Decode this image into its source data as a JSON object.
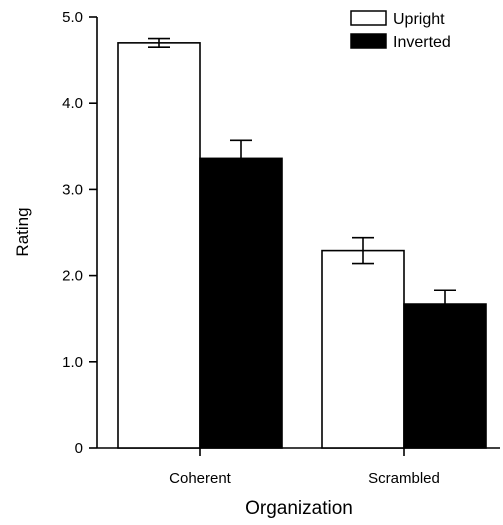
{
  "chart_data": {
    "type": "bar",
    "title": "",
    "xlabel": "Organization",
    "ylabel": "Rating",
    "categories": [
      "Coherent",
      "Scrambled"
    ],
    "ylim": [
      0,
      5.0
    ],
    "yticks": [
      "0",
      "1.0",
      "2.0",
      "3.0",
      "4.0",
      "5.0"
    ],
    "legend_position": "top-right",
    "grid": false,
    "series": [
      {
        "name": "Upright",
        "values": [
          4.7,
          2.29
        ],
        "errors": [
          0.05,
          0.15
        ],
        "color": "#ffffff"
      },
      {
        "name": "Inverted",
        "values": [
          3.36,
          1.67
        ],
        "errors": [
          0.21,
          0.16
        ],
        "color": "#000000"
      }
    ]
  }
}
